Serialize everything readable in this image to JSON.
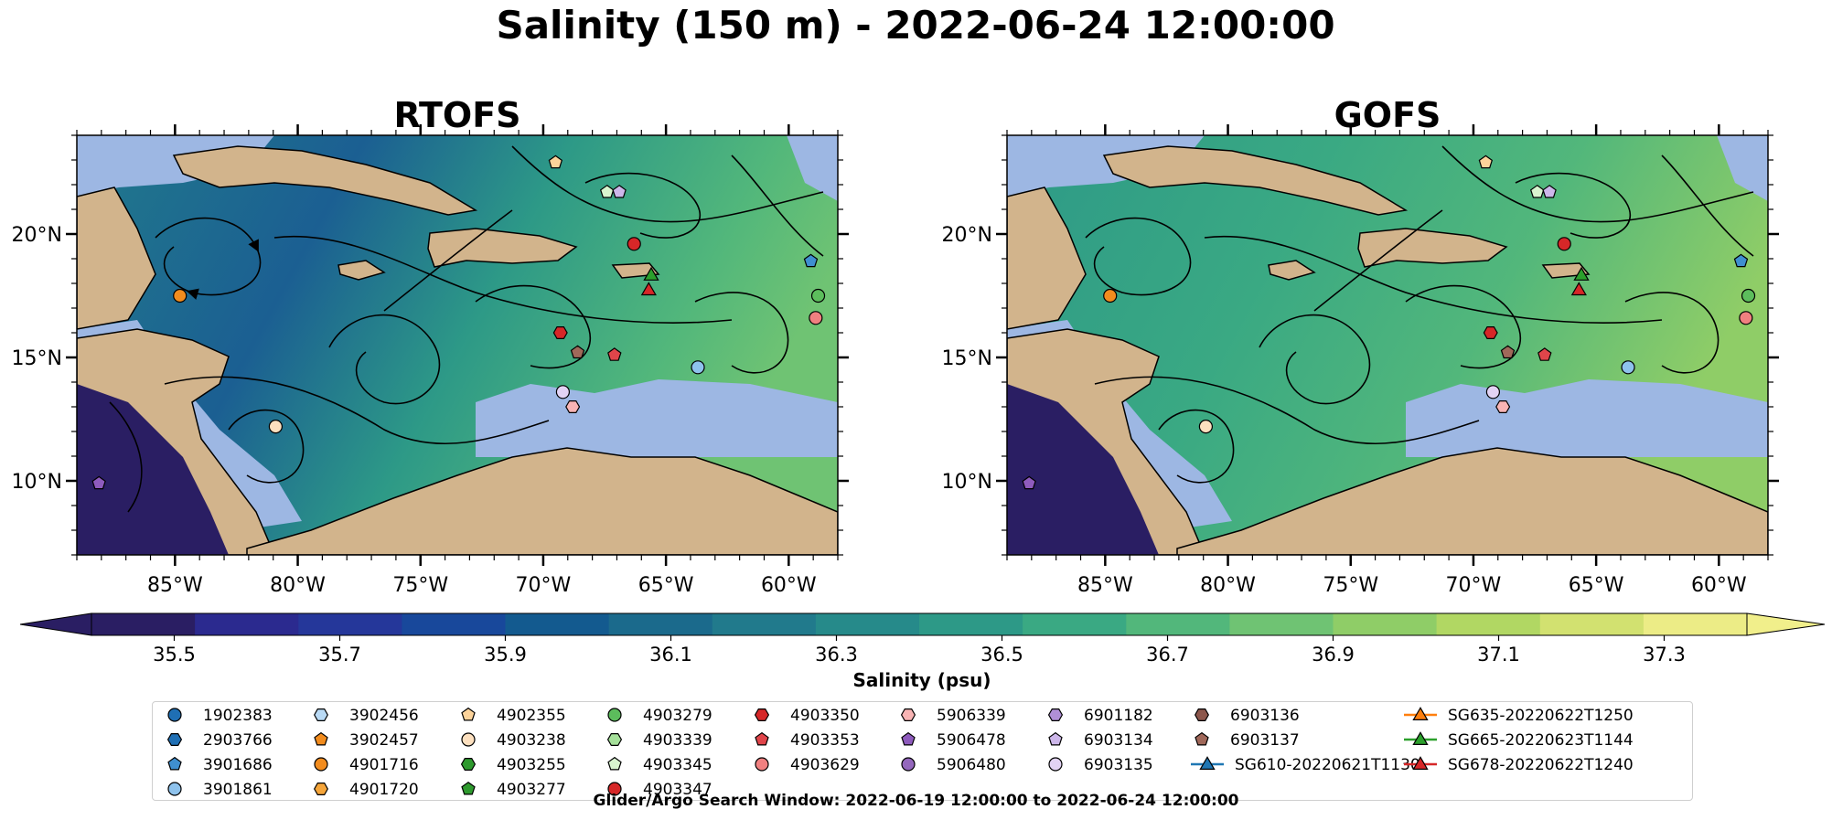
{
  "figure": {
    "title": "Salinity (150 m) - 2022-06-24 12:00:00",
    "search_window": "Glider/Argo Search Window: 2022-06-19 12:00:00 to 2022-06-24 12:00:00"
  },
  "colors": {
    "land": "#d2b48c",
    "shallow_water": "#9db7e3",
    "streamline": "#000000",
    "colormap": [
      "#2a1e63",
      "#2b2a8f",
      "#25379a",
      "#18489b",
      "#135a8f",
      "#1b6a8c",
      "#217a8c",
      "#268a8a",
      "#2d9987",
      "#3aa983",
      "#52b77b",
      "#6fc373",
      "#8fcd67",
      "#b1d763",
      "#d2e170",
      "#ecec86"
    ]
  },
  "chart_data": [
    {
      "type": "heatmap",
      "title": "RTOFS",
      "xlabel": "",
      "ylabel": "",
      "xlim": [
        -89,
        -58
      ],
      "ylim": [
        7,
        24
      ],
      "x_ticks": [
        "85°W",
        "80°W",
        "75°W",
        "70°W",
        "65°W",
        "60°W"
      ],
      "x_tick_values": [
        -85,
        -80,
        -75,
        -70,
        -65,
        -60
      ],
      "y_ticks": [
        "20°N",
        "15°N",
        "10°N"
      ],
      "y_tick_values": [
        20,
        15,
        10
      ]
    },
    {
      "type": "heatmap",
      "title": "GOFS",
      "xlabel": "",
      "ylabel": "",
      "xlim": [
        -89,
        -58
      ],
      "ylim": [
        7,
        24
      ],
      "x_ticks": [
        "85°W",
        "80°W",
        "75°W",
        "70°W",
        "65°W",
        "60°W"
      ],
      "x_tick_values": [
        -85,
        -80,
        -75,
        -70,
        -65,
        -60
      ],
      "y_ticks": [
        "20°N",
        "15°N",
        "10°N"
      ],
      "y_tick_values": [
        20,
        15,
        10
      ]
    }
  ],
  "colorbar": {
    "label": "Salinity (psu)",
    "min": 35.4,
    "max": 37.4,
    "ticks": [
      "35.5",
      "35.7",
      "35.9",
      "36.1",
      "36.3",
      "36.5",
      "36.7",
      "36.9",
      "37.1",
      "37.3"
    ],
    "tick_values": [
      35.5,
      35.7,
      35.9,
      36.1,
      36.3,
      36.5,
      36.7,
      36.9,
      37.1,
      37.3
    ]
  },
  "legend": {
    "columns": [
      [
        {
          "label": "1902383",
          "marker": "circle",
          "color": "#1f6fb4"
        },
        {
          "label": "2903766",
          "marker": "hexagon",
          "color": "#1f6fb4"
        },
        {
          "label": "3901686",
          "marker": "pentagon",
          "color": "#3f8fd0"
        },
        {
          "label": "3901861",
          "marker": "circle",
          "color": "#8ec2ec"
        }
      ],
      [
        {
          "label": "3902456",
          "marker": "hexagon",
          "color": "#b9daf5"
        },
        {
          "label": "3902457",
          "marker": "pentagon",
          "color": "#f28c1e"
        },
        {
          "label": "4901716",
          "marker": "circle",
          "color": "#f28c1e"
        },
        {
          "label": "4901720",
          "marker": "hexagon",
          "color": "#f5a53a"
        }
      ],
      [
        {
          "label": "4902355",
          "marker": "pentagon",
          "color": "#fcd39a"
        },
        {
          "label": "4903238",
          "marker": "circle",
          "color": "#fde0bf"
        },
        {
          "label": "4903255",
          "marker": "hexagon",
          "color": "#2e9a2e"
        },
        {
          "label": "4903277",
          "marker": "pentagon",
          "color": "#2e9a2e"
        }
      ],
      [
        {
          "label": "4903279",
          "marker": "circle",
          "color": "#5cbd5c"
        },
        {
          "label": "4903339",
          "marker": "hexagon",
          "color": "#a5e09a"
        },
        {
          "label": "4903345",
          "marker": "pentagon",
          "color": "#d8f5cf"
        },
        {
          "label": "4903347",
          "marker": "circle",
          "color": "#d62728"
        }
      ],
      [
        {
          "label": "4903350",
          "marker": "hexagon",
          "color": "#d62728"
        },
        {
          "label": "4903353",
          "marker": "pentagon",
          "color": "#e0454a"
        },
        {
          "label": "4903629",
          "marker": "circle",
          "color": "#f08080"
        }
      ],
      [
        {
          "label": "5906339",
          "marker": "hexagon",
          "color": "#f8b4b4"
        },
        {
          "label": "5906478",
          "marker": "pentagon",
          "color": "#8e5bbd"
        },
        {
          "label": "5906480",
          "marker": "circle",
          "color": "#9467bd"
        }
      ],
      [
        {
          "label": "6901182",
          "marker": "hexagon",
          "color": "#b08fd6"
        },
        {
          "label": "6903134",
          "marker": "pentagon",
          "color": "#cdb7ea"
        },
        {
          "label": "6903135",
          "marker": "circle",
          "color": "#e2d3f4"
        }
      ],
      [
        {
          "label": "6903136",
          "marker": "hexagon",
          "color": "#8c564b"
        },
        {
          "label": "6903137",
          "marker": "pentagon",
          "color": "#a0685a"
        },
        {
          "label": "SG610-20220621T1130",
          "marker": "triangle-line",
          "color": "#1f77b4"
        }
      ],
      [
        {
          "label": "SG635-20220622T1250",
          "marker": "triangle-line",
          "color": "#ff7f0e"
        },
        {
          "label": "SG665-20220623T1144",
          "marker": "triangle-line",
          "color": "#2ca02c"
        },
        {
          "label": "SG678-20220622T1240",
          "marker": "triangle-line",
          "color": "#d62728"
        }
      ]
    ]
  },
  "platforms": [
    {
      "id": "4901716",
      "lon": -84.8,
      "lat": 17.5
    },
    {
      "id": "4903238",
      "lon": -80.9,
      "lat": 12.2
    },
    {
      "id": "5906478",
      "lon": -88.1,
      "lat": 9.9
    },
    {
      "id": "4902355",
      "lon": -69.5,
      "lat": 22.9
    },
    {
      "id": "4903345",
      "lon": -67.4,
      "lat": 21.7
    },
    {
      "id": "6903134",
      "lon": -66.9,
      "lat": 21.7
    },
    {
      "id": "4903347",
      "lon": -66.3,
      "lat": 19.6
    },
    {
      "id": "SG665-20220623T1144",
      "lon": -65.6,
      "lat": 18.3
    },
    {
      "id": "SG678-20220622T1240",
      "lon": -65.7,
      "lat": 17.7
    },
    {
      "id": "4903350",
      "lon": -69.3,
      "lat": 16.0
    },
    {
      "id": "6903137",
      "lon": -68.6,
      "lat": 15.2
    },
    {
      "id": "4903353",
      "lon": -67.1,
      "lat": 15.1
    },
    {
      "id": "3901861",
      "lon": -63.7,
      "lat": 14.6
    },
    {
      "id": "6903135",
      "lon": -69.2,
      "lat": 13.6
    },
    {
      "id": "5906339",
      "lon": -68.8,
      "lat": 13.0
    },
    {
      "id": "3901686",
      "lon": -59.1,
      "lat": 18.9
    },
    {
      "id": "4903279",
      "lon": -58.8,
      "lat": 17.5
    },
    {
      "id": "4903629",
      "lon": -58.9,
      "lat": 16.6
    }
  ]
}
